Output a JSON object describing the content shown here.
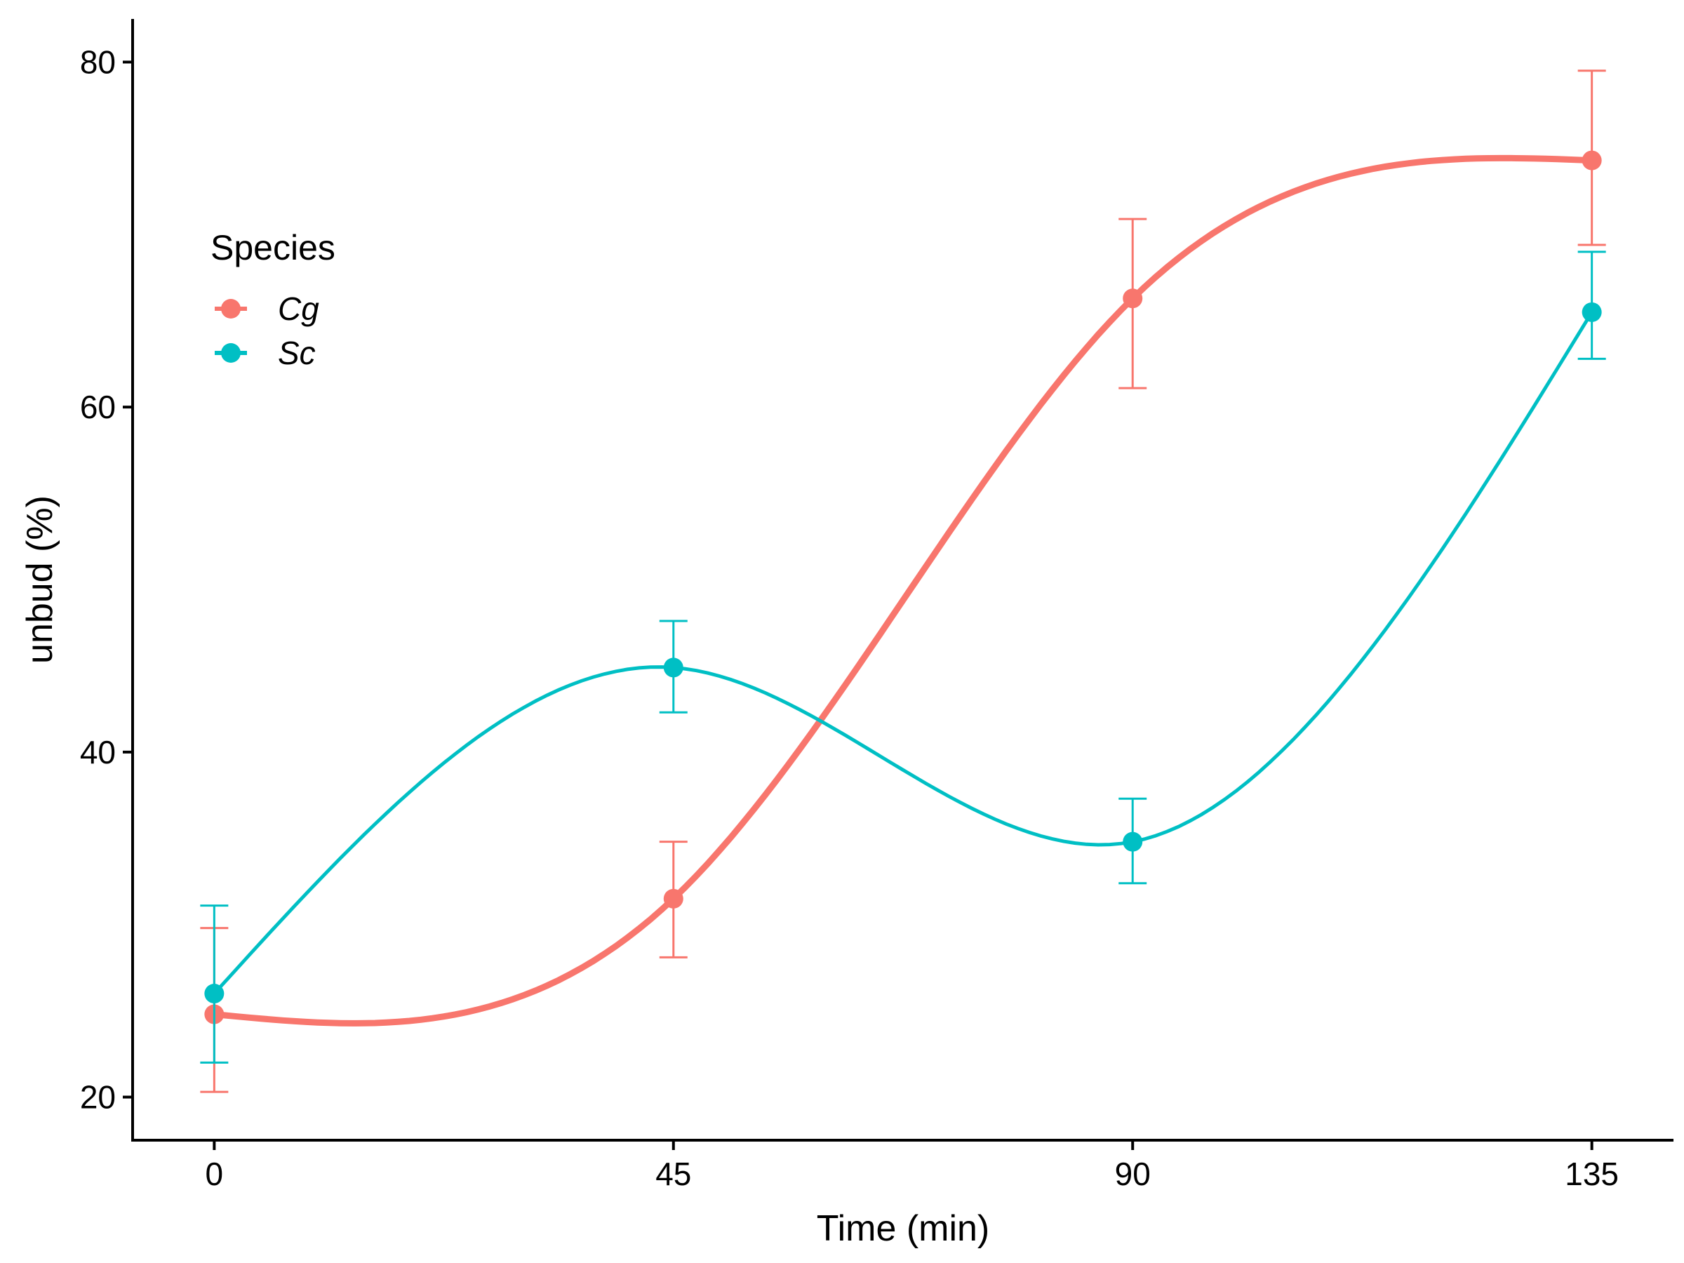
{
  "chart_data": {
    "type": "line",
    "x": [
      0,
      45,
      90,
      135
    ],
    "x_ticks": [
      "0",
      "45",
      "90",
      "135"
    ],
    "y_ticks": [
      "20",
      "40",
      "60",
      "80"
    ],
    "xlim": [
      -8,
      143
    ],
    "ylim": [
      17.5,
      82.5
    ],
    "xlabel": "Time (min)",
    "ylabel": "unbud (%)",
    "grid": false,
    "legend": {
      "title": "Species",
      "position": "top-left"
    },
    "series": [
      {
        "name": "Cg",
        "color": "#F8766D",
        "values": [
          24.8,
          31.5,
          66.3,
          74.3
        ],
        "error_low": [
          20.3,
          28.1,
          61.1,
          69.4
        ],
        "error_high": [
          29.8,
          34.8,
          70.9,
          79.5
        ]
      },
      {
        "name": "Sc",
        "color": "#00BFC4",
        "values": [
          26.0,
          44.9,
          34.8,
          65.5
        ],
        "error_low": [
          22.0,
          42.3,
          32.4,
          62.8
        ],
        "error_high": [
          31.1,
          47.6,
          37.3,
          69.0
        ]
      }
    ]
  }
}
